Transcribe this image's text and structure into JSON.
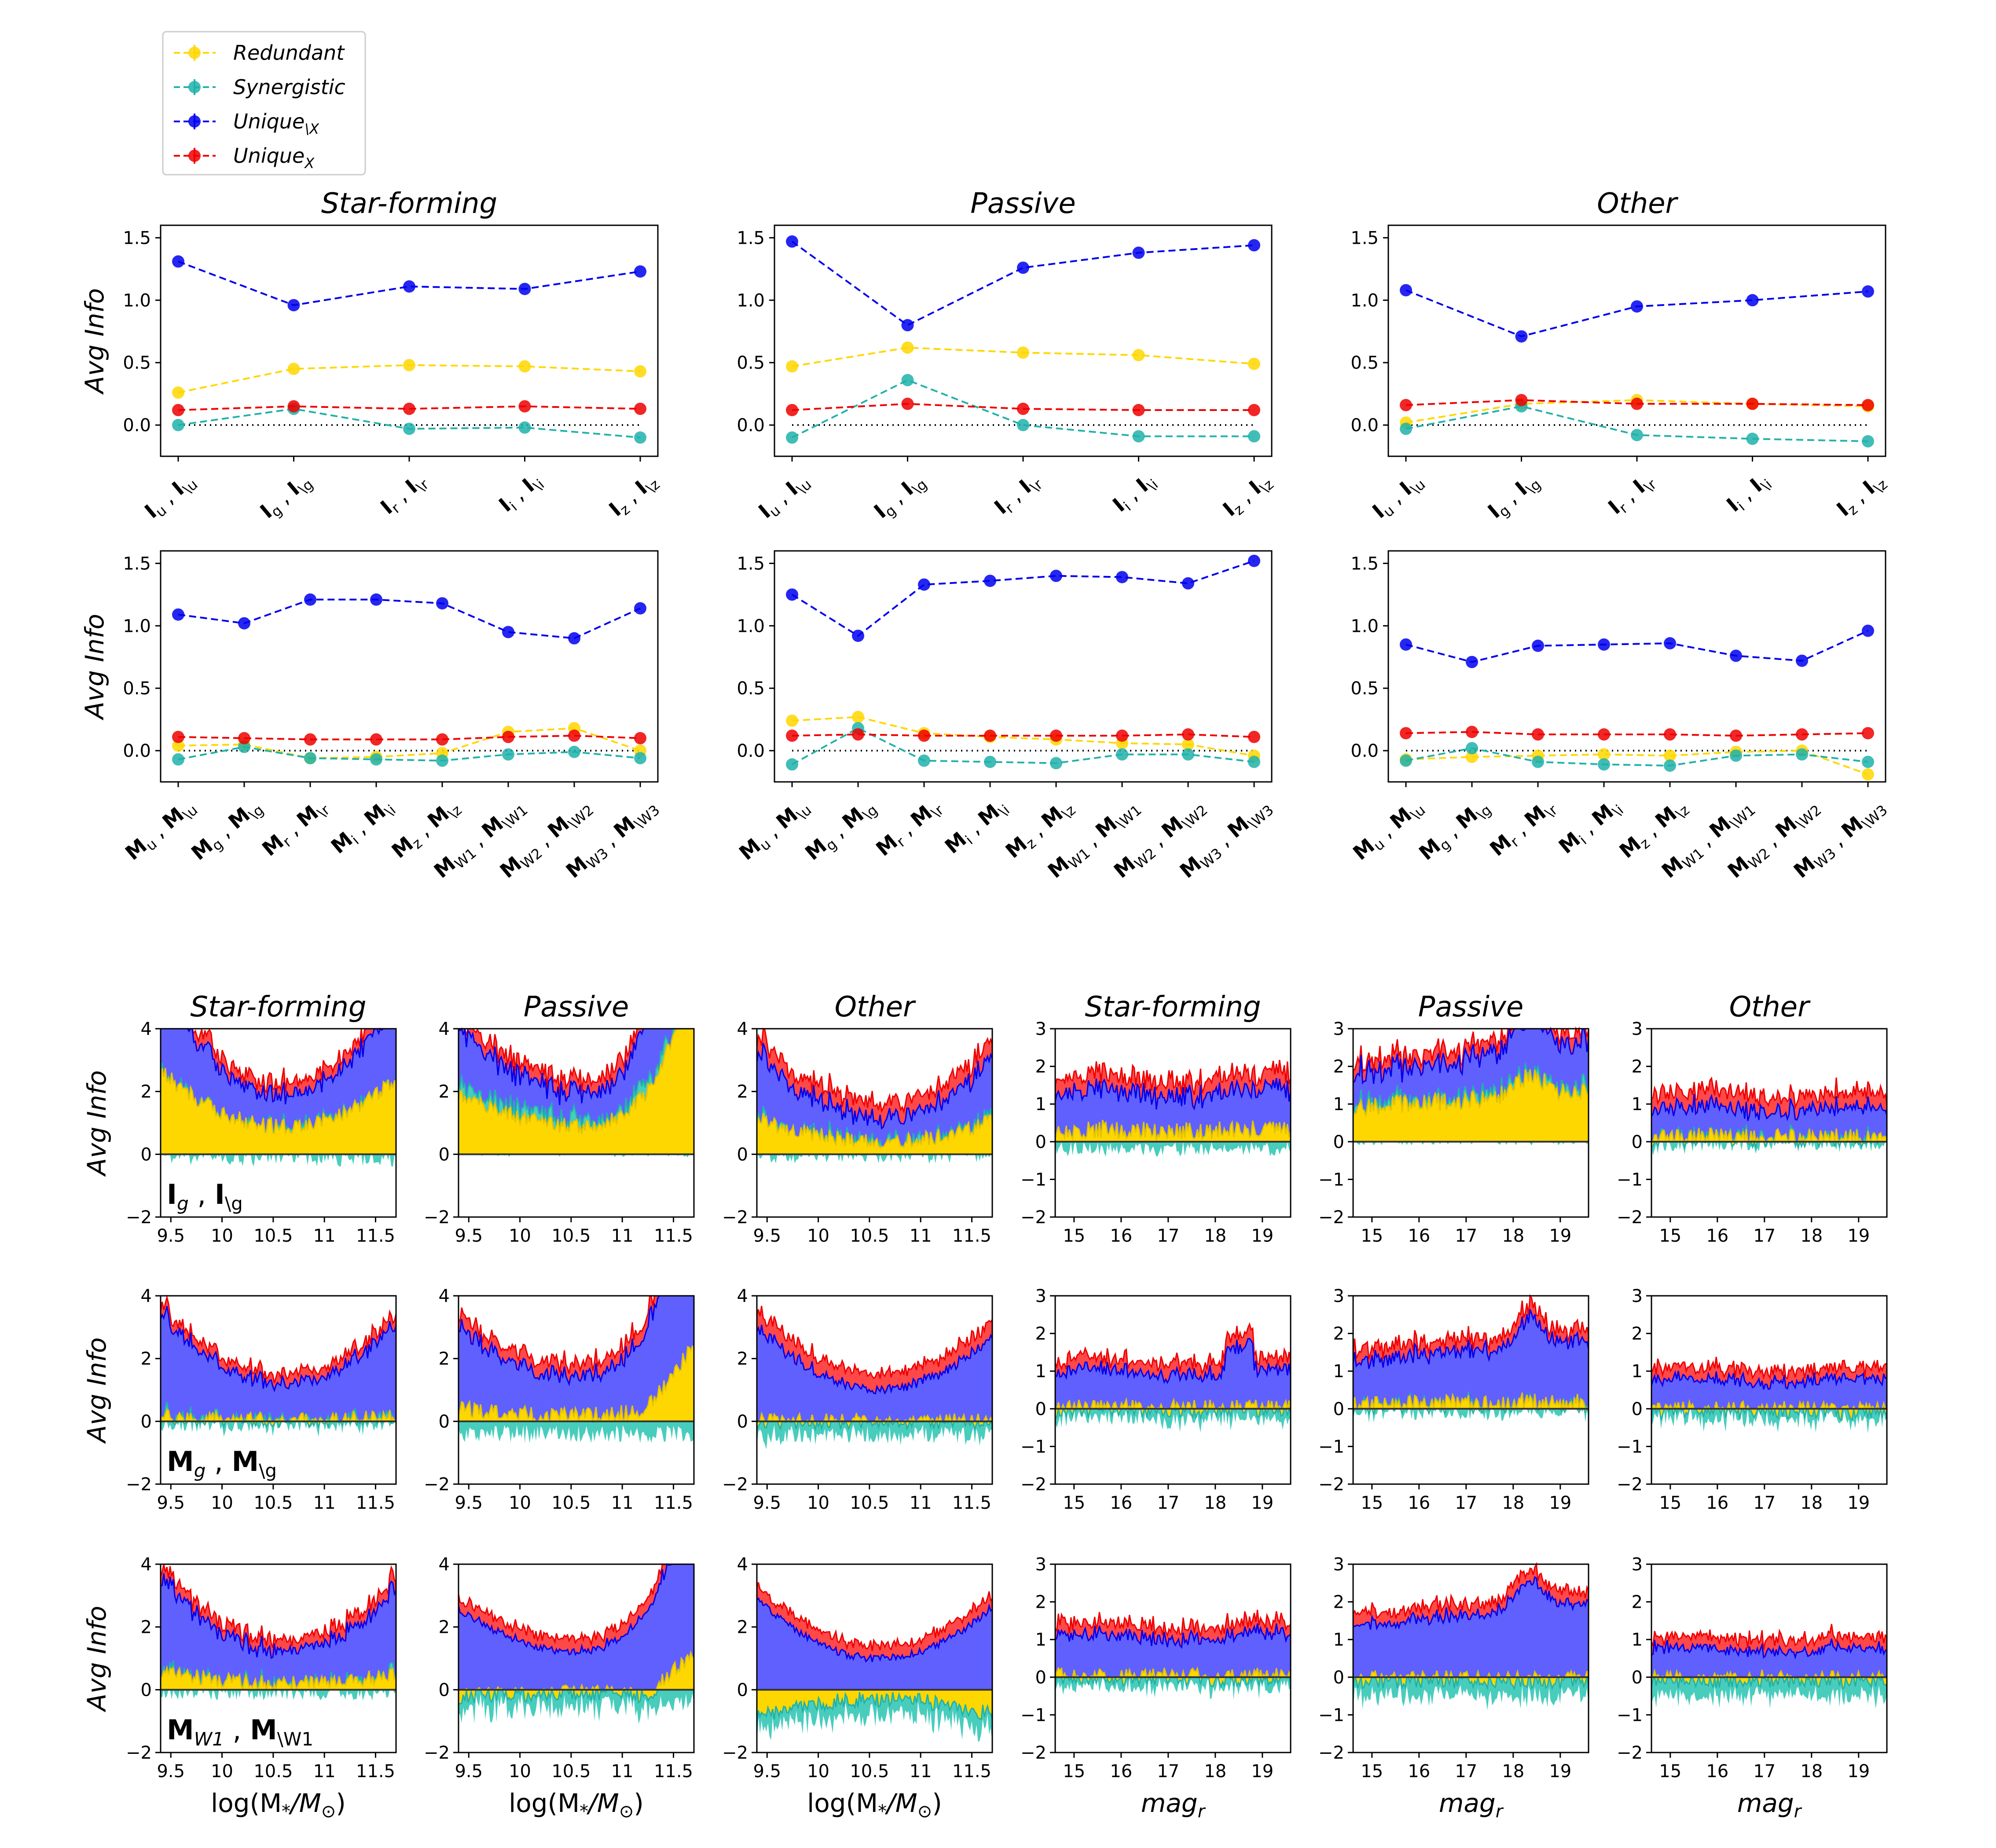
{
  "colors": {
    "redundant": "#ffd700",
    "synergistic": "#20b2aa",
    "unique_notx": "#0000ee",
    "unique_x": "#ee0000"
  },
  "legend": {
    "items": [
      {
        "key": "redundant",
        "label": "Redundant"
      },
      {
        "key": "synergistic",
        "label": "Synergistic"
      },
      {
        "key": "unique_notx",
        "label": "Unique",
        "sub": "\\X"
      },
      {
        "key": "unique_x",
        "label": "Unique",
        "sub": "X"
      }
    ]
  },
  "chart_data": [
    {
      "id": "sf-image",
      "type": "line",
      "title": "Star-forming",
      "ylabel": "Avg Info",
      "ylim": [
        -0.25,
        1.6
      ],
      "yticks": [
        "1.5",
        "1.0",
        "0.5",
        "0.0"
      ],
      "categories": [
        {
          "a": "I",
          "as": "u",
          "b": "I",
          "bs": "\\u"
        },
        {
          "a": "I",
          "as": "g",
          "b": "I",
          "bs": "\\g"
        },
        {
          "a": "I",
          "as": "r",
          "b": "I",
          "bs": "\\r"
        },
        {
          "a": "I",
          "as": "i",
          "b": "I",
          "bs": "\\i"
        },
        {
          "a": "I",
          "as": "z",
          "b": "I",
          "bs": "\\z"
        }
      ],
      "series": [
        {
          "name": "Redundant",
          "key": "redundant",
          "values": [
            0.26,
            0.45,
            0.48,
            0.47,
            0.43
          ]
        },
        {
          "name": "Synergistic",
          "key": "synergistic",
          "values": [
            0.0,
            0.13,
            -0.03,
            -0.02,
            -0.1
          ]
        },
        {
          "name": "Unique\\X",
          "key": "unique_notx",
          "values": [
            1.31,
            0.96,
            1.11,
            1.09,
            1.23
          ]
        },
        {
          "name": "UniqueX",
          "key": "unique_x",
          "values": [
            0.12,
            0.15,
            0.13,
            0.15,
            0.13
          ]
        }
      ]
    },
    {
      "id": "pa-image",
      "type": "line",
      "title": "Passive",
      "ylabel": "",
      "ylim": [
        -0.25,
        1.6
      ],
      "yticks": [
        "1.5",
        "1.0",
        "0.5",
        "0.0"
      ],
      "categories": [
        {
          "a": "I",
          "as": "u",
          "b": "I",
          "bs": "\\u"
        },
        {
          "a": "I",
          "as": "g",
          "b": "I",
          "bs": "\\g"
        },
        {
          "a": "I",
          "as": "r",
          "b": "I",
          "bs": "\\r"
        },
        {
          "a": "I",
          "as": "i",
          "b": "I",
          "bs": "\\i"
        },
        {
          "a": "I",
          "as": "z",
          "b": "I",
          "bs": "\\z"
        }
      ],
      "series": [
        {
          "name": "Redundant",
          "key": "redundant",
          "values": [
            0.47,
            0.62,
            0.58,
            0.56,
            0.49
          ]
        },
        {
          "name": "Synergistic",
          "key": "synergistic",
          "values": [
            -0.1,
            0.36,
            0.0,
            -0.09,
            -0.09
          ]
        },
        {
          "name": "Unique\\X",
          "key": "unique_notx",
          "values": [
            1.47,
            0.8,
            1.26,
            1.38,
            1.44
          ]
        },
        {
          "name": "UniqueX",
          "key": "unique_x",
          "values": [
            0.12,
            0.17,
            0.13,
            0.12,
            0.12
          ]
        }
      ]
    },
    {
      "id": "ot-image",
      "type": "line",
      "title": "Other",
      "ylabel": "",
      "ylim": [
        -0.25,
        1.6
      ],
      "yticks": [
        "1.5",
        "1.0",
        "0.5",
        "0.0"
      ],
      "categories": [
        {
          "a": "I",
          "as": "u",
          "b": "I",
          "bs": "\\u"
        },
        {
          "a": "I",
          "as": "g",
          "b": "I",
          "bs": "\\g"
        },
        {
          "a": "I",
          "as": "r",
          "b": "I",
          "bs": "\\r"
        },
        {
          "a": "I",
          "as": "i",
          "b": "I",
          "bs": "\\i"
        },
        {
          "a": "I",
          "as": "z",
          "b": "I",
          "bs": "\\z"
        }
      ],
      "series": [
        {
          "name": "Redundant",
          "key": "redundant",
          "values": [
            0.02,
            0.17,
            0.2,
            0.17,
            0.15
          ]
        },
        {
          "name": "Synergistic",
          "key": "synergistic",
          "values": [
            -0.03,
            0.15,
            -0.08,
            -0.11,
            -0.13
          ]
        },
        {
          "name": "Unique\\X",
          "key": "unique_notx",
          "values": [
            1.08,
            0.71,
            0.95,
            1.0,
            1.07
          ]
        },
        {
          "name": "UniqueX",
          "key": "unique_x",
          "values": [
            0.16,
            0.2,
            0.17,
            0.17,
            0.16
          ]
        }
      ]
    },
    {
      "id": "sf-morph",
      "type": "line",
      "title": "",
      "ylabel": "Avg Info",
      "ylim": [
        -0.25,
        1.6
      ],
      "yticks": [
        "1.5",
        "1.0",
        "0.5",
        "0.0"
      ],
      "categories": [
        {
          "a": "M",
          "as": "u",
          "b": "M",
          "bs": "\\u"
        },
        {
          "a": "M",
          "as": "g",
          "b": "M",
          "bs": "\\g"
        },
        {
          "a": "M",
          "as": "r",
          "b": "M",
          "bs": "\\r"
        },
        {
          "a": "M",
          "as": "i",
          "b": "M",
          "bs": "\\i"
        },
        {
          "a": "M",
          "as": "z",
          "b": "M",
          "bs": "\\z"
        },
        {
          "a": "M",
          "as": "W1",
          "b": "M",
          "bs": "\\W1"
        },
        {
          "a": "M",
          "as": "W2",
          "b": "M",
          "bs": "\\W2"
        },
        {
          "a": "M",
          "as": "W3",
          "b": "M",
          "bs": "\\W3"
        }
      ],
      "series": [
        {
          "name": "Redundant",
          "key": "redundant",
          "values": [
            0.04,
            0.05,
            -0.06,
            -0.05,
            -0.02,
            0.15,
            0.18,
            0.0
          ]
        },
        {
          "name": "Synergistic",
          "key": "synergistic",
          "values": [
            -0.07,
            0.03,
            -0.06,
            -0.07,
            -0.08,
            -0.03,
            -0.01,
            -0.06
          ]
        },
        {
          "name": "Unique\\X",
          "key": "unique_notx",
          "values": [
            1.09,
            1.02,
            1.21,
            1.21,
            1.18,
            0.95,
            0.9,
            1.14
          ]
        },
        {
          "name": "UniqueX",
          "key": "unique_x",
          "values": [
            0.11,
            0.1,
            0.09,
            0.09,
            0.09,
            0.11,
            0.12,
            0.1
          ]
        }
      ]
    },
    {
      "id": "pa-morph",
      "type": "line",
      "title": "",
      "ylabel": "",
      "ylim": [
        -0.25,
        1.6
      ],
      "yticks": [
        "1.5",
        "1.0",
        "0.5",
        "0.0"
      ],
      "categories": [
        {
          "a": "M",
          "as": "u",
          "b": "M",
          "bs": "\\u"
        },
        {
          "a": "M",
          "as": "g",
          "b": "M",
          "bs": "\\g"
        },
        {
          "a": "M",
          "as": "r",
          "b": "M",
          "bs": "\\r"
        },
        {
          "a": "M",
          "as": "i",
          "b": "M",
          "bs": "\\i"
        },
        {
          "a": "M",
          "as": "z",
          "b": "M",
          "bs": "\\z"
        },
        {
          "a": "M",
          "as": "W1",
          "b": "M",
          "bs": "\\W1"
        },
        {
          "a": "M",
          "as": "W2",
          "b": "M",
          "bs": "\\W2"
        },
        {
          "a": "M",
          "as": "W3",
          "b": "M",
          "bs": "\\W3"
        }
      ],
      "series": [
        {
          "name": "Redundant",
          "key": "redundant",
          "values": [
            0.24,
            0.27,
            0.14,
            0.11,
            0.09,
            0.06,
            0.05,
            -0.04
          ]
        },
        {
          "name": "Synergistic",
          "key": "synergistic",
          "values": [
            -0.11,
            0.18,
            -0.08,
            -0.09,
            -0.1,
            -0.03,
            -0.03,
            -0.09
          ]
        },
        {
          "name": "Unique\\X",
          "key": "unique_notx",
          "values": [
            1.25,
            0.92,
            1.33,
            1.36,
            1.4,
            1.39,
            1.34,
            1.52
          ]
        },
        {
          "name": "UniqueX",
          "key": "unique_x",
          "values": [
            0.12,
            0.13,
            0.12,
            0.12,
            0.12,
            0.12,
            0.13,
            0.11
          ]
        }
      ]
    },
    {
      "id": "ot-morph",
      "type": "line",
      "title": "",
      "ylabel": "",
      "ylim": [
        -0.25,
        1.6
      ],
      "yticks": [
        "1.5",
        "1.0",
        "0.5",
        "0.0"
      ],
      "categories": [
        {
          "a": "M",
          "as": "u",
          "b": "M",
          "bs": "\\u"
        },
        {
          "a": "M",
          "as": "g",
          "b": "M",
          "bs": "\\g"
        },
        {
          "a": "M",
          "as": "r",
          "b": "M",
          "bs": "\\r"
        },
        {
          "a": "M",
          "as": "i",
          "b": "M",
          "bs": "\\i"
        },
        {
          "a": "M",
          "as": "z",
          "b": "M",
          "bs": "\\z"
        },
        {
          "a": "M",
          "as": "W1",
          "b": "M",
          "bs": "\\W1"
        },
        {
          "a": "M",
          "as": "W2",
          "b": "M",
          "bs": "\\W2"
        },
        {
          "a": "M",
          "as": "W3",
          "b": "M",
          "bs": "\\W3"
        }
      ],
      "series": [
        {
          "name": "Redundant",
          "key": "redundant",
          "values": [
            -0.07,
            -0.05,
            -0.04,
            -0.03,
            -0.04,
            -0.01,
            0.0,
            -0.19
          ]
        },
        {
          "name": "Synergistic",
          "key": "synergistic",
          "values": [
            -0.08,
            0.02,
            -0.09,
            -0.11,
            -0.12,
            -0.04,
            -0.03,
            -0.09
          ]
        },
        {
          "name": "Unique\\X",
          "key": "unique_notx",
          "values": [
            0.85,
            0.71,
            0.84,
            0.85,
            0.86,
            0.76,
            0.72,
            0.96
          ]
        },
        {
          "name": "UniqueX",
          "key": "unique_x",
          "values": [
            0.14,
            0.15,
            0.13,
            0.13,
            0.13,
            0.12,
            0.13,
            0.14
          ]
        }
      ]
    },
    {
      "id": "area-grid",
      "type": "area",
      "note": "stacked area: redundant (bottom), synergistic, unique_notx, unique_x (top)",
      "titles": [
        "Star-forming",
        "Passive",
        "Other",
        "Star-forming",
        "Passive",
        "Other"
      ],
      "ylabel": "Avg Info",
      "mass_axis": {
        "xlim": [
          9.4,
          11.7
        ],
        "ticks": [
          "9.5",
          "10",
          "10.5",
          "11",
          "11.5"
        ],
        "tick_values": [
          9.5,
          10,
          10.5,
          11,
          11.5
        ],
        "xlabel": "log(M",
        "xlabel_sub": "*",
        "xlabel_mid": "/M",
        "xlabel_sub2": "⊙",
        "xlabel_end": ")",
        "ylim": [
          -2,
          4
        ],
        "yticks": [
          "4",
          "2",
          "0",
          "−2"
        ],
        "ytick_values": [
          4,
          2,
          0,
          -2
        ]
      },
      "mag_axis": {
        "xlim": [
          14.6,
          19.6
        ],
        "ticks": [
          "15",
          "16",
          "17",
          "18",
          "19"
        ],
        "tick_values": [
          15,
          16,
          17,
          18,
          19
        ],
        "xlabel": "mag",
        "xlabel_sub": "r",
        "ylim": [
          -2,
          3
        ],
        "yticks": [
          "3",
          "2",
          "1",
          "0",
          "−1",
          "−2"
        ],
        "ytick_values": [
          3,
          2,
          1,
          0,
          -1,
          -2
        ]
      },
      "rows": [
        {
          "label": "I",
          "label_sub": "g",
          "label_mid": " , ",
          "label2": "I",
          "label2_sub": "\\g",
          "approx": [
            {
              "red": 0.9,
              "syn": -0.1,
              "unx": 0.95,
              "ux": 0.25
            },
            {
              "red": 0.9,
              "syn": 0.2,
              "unx": 0.85,
              "ux": 0.3
            },
            {
              "red": 0.4,
              "syn": 0.0,
              "unx": 0.7,
              "ux": 0.4
            },
            {
              "red": 0.3,
              "syn": -0.2,
              "unx": 1.0,
              "ux": 0.3
            },
            {
              "red": 0.9,
              "syn": 0.1,
              "unx": 0.8,
              "ux": 0.2
            },
            {
              "red": 0.1,
              "syn": -0.05,
              "unx": 0.7,
              "ux": 0.3
            }
          ]
        },
        {
          "label": "M",
          "label_sub": "g",
          "label_mid": " , ",
          "label2": "M",
          "label2_sub": "\\g",
          "approx": [
            {
              "red": 0.05,
              "syn": -0.05,
              "unx": 1.1,
              "ux": 0.2
            },
            {
              "red": 0.2,
              "syn": -0.4,
              "unx": 1.2,
              "ux": 0.3
            },
            {
              "red": 0.0,
              "syn": -0.4,
              "unx": 1.0,
              "ux": 0.4
            },
            {
              "red": 0.0,
              "syn": -0.2,
              "unx": 0.9,
              "ux": 0.2
            },
            {
              "red": 0.1,
              "syn": -0.1,
              "unx": 1.1,
              "ux": 0.2
            },
            {
              "red": -0.05,
              "syn": -0.2,
              "unx": 0.7,
              "ux": 0.2
            }
          ]
        },
        {
          "label": "M",
          "label_sub": "W1",
          "label_mid": " , ",
          "label2": "M",
          "label2_sub": "\\W1",
          "approx": [
            {
              "red": 0.2,
              "syn": -0.05,
              "unx": 1.0,
              "ux": 0.25
            },
            {
              "red": -0.1,
              "syn": -0.4,
              "unx": 1.2,
              "ux": 0.3
            },
            {
              "red": -0.3,
              "syn": -0.5,
              "unx": 1.0,
              "ux": 0.3
            },
            {
              "red": 0.0,
              "syn": -0.2,
              "unx": 1.0,
              "ux": 0.2
            },
            {
              "red": -0.05,
              "syn": -0.4,
              "unx": 1.3,
              "ux": 0.2
            },
            {
              "red": -0.05,
              "syn": -0.4,
              "unx": 0.7,
              "ux": 0.2
            }
          ]
        }
      ]
    }
  ]
}
